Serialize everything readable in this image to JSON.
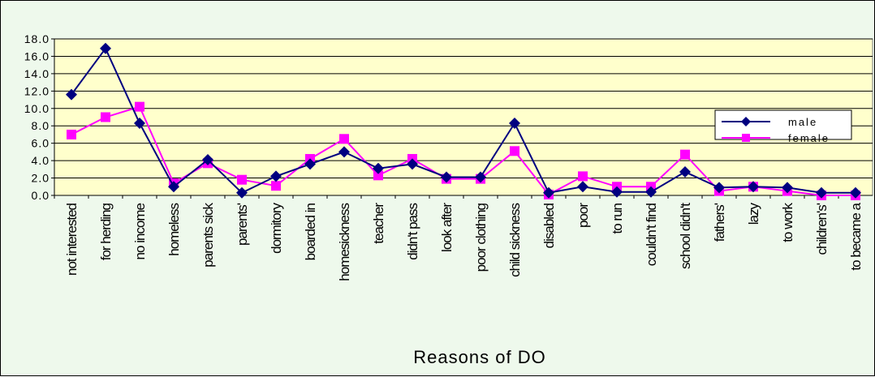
{
  "chart_data": {
    "type": "line",
    "xlabel": "Reasons of DO",
    "ylabel": "",
    "ylim": [
      0,
      18
    ],
    "y_ticks": [
      "0.0",
      "2.0",
      "4.0",
      "6.0",
      "8.0",
      "10.0",
      "12.0",
      "14.0",
      "16.0",
      "18.0"
    ],
    "grid": "horizontal",
    "legend_position": "right",
    "categories": [
      "not interested",
      "for herding",
      "no income",
      "homeless",
      "parents sick",
      "parents'",
      "dormitory",
      "boarded in",
      "homesickness",
      "teacher",
      "didn't pass",
      "look after",
      "poor clothing",
      "child sickness",
      "disabled",
      "poor",
      "to run",
      "couldn't find",
      "school didn't",
      "fathers'",
      "lazy",
      "to work",
      "children's'",
      "to became a"
    ],
    "series": [
      {
        "name": "male",
        "color": "#000080",
        "marker": "diamond",
        "values": [
          11.6,
          16.9,
          8.3,
          1.0,
          4.1,
          0.3,
          2.2,
          3.6,
          5.0,
          3.1,
          3.6,
          2.1,
          2.1,
          8.3,
          0.3,
          1.0,
          0.4,
          0.4,
          2.7,
          0.9,
          1.0,
          0.9,
          0.3,
          0.3
        ]
      },
      {
        "name": "female",
        "color": "#ff00ff",
        "marker": "square",
        "values": [
          7.0,
          9.0,
          10.2,
          1.4,
          3.7,
          1.8,
          1.1,
          4.2,
          6.5,
          2.3,
          4.2,
          1.9,
          1.9,
          5.1,
          0.1,
          2.2,
          1.0,
          1.0,
          4.7,
          0.5,
          1.0,
          0.5,
          0.0,
          0.0
        ]
      }
    ]
  }
}
